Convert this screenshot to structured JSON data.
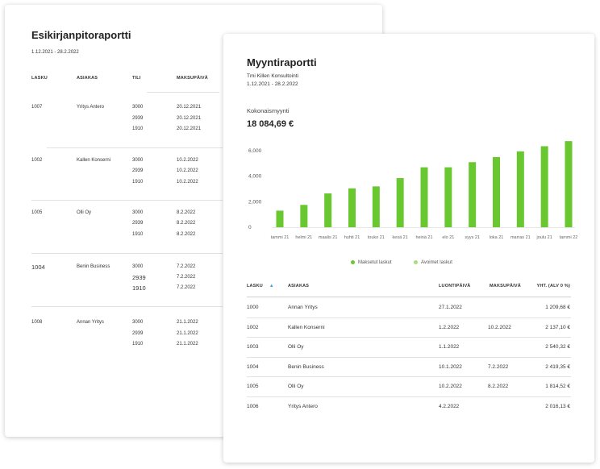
{
  "journal": {
    "title": "Esikirjanpitoraportti",
    "period": "1.12.2021 - 28.2.2022",
    "headers": {
      "lasku": "LASKU",
      "asiakas": "ASIAKAS",
      "tili": "TILI",
      "maksupaiva": "MAKSUPÄIVÄ"
    },
    "rows": [
      {
        "lasku": "1007",
        "asiakas": "Yritys Antero",
        "tilit": [
          "3000",
          "2939",
          "1910"
        ],
        "paivat": [
          "20.12.2021",
          "20.12.2021",
          "20.12.2021"
        ]
      },
      {
        "lasku": "1002",
        "asiakas": "Kallen Konserni",
        "tilit": [
          "3000",
          "2939",
          "1910"
        ],
        "paivat": [
          "10.2.2022",
          "10.2.2022",
          "10.2.2022"
        ]
      },
      {
        "lasku": "1005",
        "asiakas": "Olli Oy",
        "tilit": [
          "3000",
          "2939",
          "1910"
        ],
        "paivat": [
          "8.2.2022",
          "8.2.2022",
          "8.2.2022"
        ]
      },
      {
        "lasku": "1004",
        "asiakas": "Benin Business",
        "tilit": [
          "3000",
          "2939",
          "1910"
        ],
        "paivat": [
          "7.2.2022",
          "7.2.2022",
          "7.2.2022"
        ]
      },
      {
        "lasku": "1008",
        "asiakas": "Annan Yritys",
        "tilit": [
          "3000",
          "2939",
          "1910"
        ],
        "paivat": [
          "21.1.2022",
          "21.1.2022",
          "21.1.2022"
        ]
      }
    ]
  },
  "sales": {
    "title": "Myyntiraportti",
    "company": "Tmi Killen Konsultointi",
    "period": "1.12.2021 - 28.2.2022",
    "total_label": "Kokonaismyynti",
    "total_value": "18 084,69 €",
    "legend": {
      "paid": "Maksetut laskut",
      "open": "Avoimet laskut"
    },
    "colors": {
      "paid": "#69c72f",
      "open": "#a8dd80",
      "sort_arrow": "#3aa9e0"
    },
    "table": {
      "headers": {
        "lasku": "LASKU",
        "asiakas": "ASIAKAS",
        "luontipaiva": "LUONTIPÄIVÄ",
        "maksupaiva": "MAKSUPÄIVÄ",
        "yht": "YHT. (ALV 0 %)"
      },
      "sort": "ascending",
      "rows": [
        {
          "lasku": "1000",
          "asiakas": "Annan Yritys",
          "luontipaiva": "27.1.2022",
          "maksupaiva": "",
          "yht": "1 209,68 €"
        },
        {
          "lasku": "1002",
          "asiakas": "Kallen Konserni",
          "luontipaiva": "1.2.2022",
          "maksupaiva": "10.2.2022",
          "yht": "2 137,10 €"
        },
        {
          "lasku": "1003",
          "asiakas": "Olli Oy",
          "luontipaiva": "1.1.2022",
          "maksupaiva": "",
          "yht": "2 540,32 €"
        },
        {
          "lasku": "1004",
          "asiakas": "Benin Business",
          "luontipaiva": "10.1.2022",
          "maksupaiva": "7.2.2022",
          "yht": "2 419,35 €"
        },
        {
          "lasku": "1005",
          "asiakas": "Olli Oy",
          "luontipaiva": "10.2.2022",
          "maksupaiva": "8.2.2022",
          "yht": "1 814,52 €"
        },
        {
          "lasku": "1006",
          "asiakas": "Yritys Antero",
          "luontipaiva": "4.2.2022",
          "maksupaiva": "",
          "yht": "2 016,13 €"
        }
      ]
    }
  },
  "chart_data": {
    "type": "bar",
    "categories": [
      "tammi 21",
      "helmi 21",
      "maalis 21",
      "huhti 21",
      "touko 21",
      "kesä 21",
      "heinä 21",
      "elo 21",
      "syys 21",
      "loka 21",
      "marras 21",
      "joulu 21",
      "tammi 22"
    ],
    "series": [
      {
        "name": "Maksetut laskut",
        "values": [
          1300,
          1750,
          2650,
          3050,
          3200,
          3850,
          4700,
          4700,
          5100,
          5500,
          5950,
          6350,
          6750
        ]
      },
      {
        "name": "Avoimet laskut",
        "values": [
          0,
          0,
          0,
          0,
          0,
          0,
          0,
          0,
          0,
          0,
          0,
          0,
          0
        ]
      }
    ],
    "yticks": [
      "6,000",
      "4,000",
      "2,000",
      "0"
    ],
    "ylim": [
      0,
      6000
    ],
    "grid": false,
    "legend": "bottom"
  }
}
